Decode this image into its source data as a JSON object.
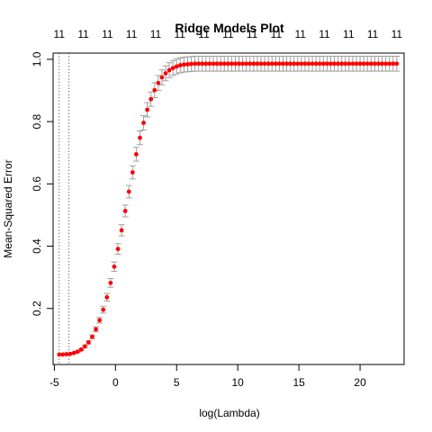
{
  "chart_data": {
    "type": "scatter",
    "title": "Ridge Models Plot",
    "xlabel": "log(Lambda)",
    "ylabel": "Mean-Squared Error",
    "xlim": [
      -5.1,
      23.6
    ],
    "ylim": [
      0.02,
      1.02
    ],
    "x_ticks": [
      -5,
      0,
      5,
      10,
      15,
      20
    ],
    "y_ticks": [
      0.2,
      0.4,
      0.6,
      0.8,
      1.0
    ],
    "x_tick_labels": [
      "-5",
      "0",
      "5",
      "10",
      "15",
      "20"
    ],
    "y_tick_labels": [
      "0.2",
      "0.4",
      "0.6",
      "0.8",
      "1.0"
    ],
    "top_axis_labels": [
      "11",
      "11",
      "11",
      "11",
      "11",
      "11",
      "11",
      "11",
      "11",
      "11",
      "11",
      "11",
      "11",
      "11",
      "11"
    ],
    "vlines": [
      -4.6,
      -3.8
    ],
    "point_color": "#ff0000",
    "errorbar_color": "#a0a0a0",
    "series": [
      {
        "x": [
          -4.6,
          -4.3,
          -4.0,
          -3.7,
          -3.4,
          -3.1,
          -2.8,
          -2.5,
          -2.2,
          -1.9,
          -1.6,
          -1.3,
          -1.0,
          -0.7,
          -0.4,
          -0.1,
          0.2,
          0.5,
          0.8,
          1.1,
          1.4,
          1.7,
          2.0,
          2.3,
          2.6,
          2.9,
          3.2,
          3.5,
          3.8,
          4.1,
          4.4,
          4.7,
          5.0,
          5.3,
          5.6,
          5.9,
          6.2,
          6.5,
          6.8,
          7.1,
          7.4,
          7.7,
          8.0,
          8.3,
          8.6,
          8.9,
          9.2,
          9.5,
          9.8,
          10.1,
          10.4,
          10.7,
          11.0,
          11.3,
          11.6,
          11.9,
          12.2,
          12.5,
          12.8,
          13.1,
          13.4,
          13.7,
          14.0,
          14.3,
          14.6,
          14.9,
          15.2,
          15.5,
          15.8,
          16.1,
          16.4,
          16.7,
          17.0,
          17.3,
          17.6,
          17.9,
          18.2,
          18.5,
          18.8,
          19.1,
          19.4,
          19.7,
          20.0,
          20.3,
          20.6,
          20.9,
          21.2,
          21.5,
          21.8,
          22.1,
          22.4,
          22.7,
          23.0
        ],
        "y": [
          0.052,
          0.052,
          0.053,
          0.054,
          0.057,
          0.061,
          0.068,
          0.078,
          0.091,
          0.109,
          0.133,
          0.162,
          0.196,
          0.236,
          0.282,
          0.334,
          0.391,
          0.451,
          0.513,
          0.575,
          0.637,
          0.695,
          0.748,
          0.796,
          0.838,
          0.872,
          0.901,
          0.924,
          0.942,
          0.955,
          0.965,
          0.972,
          0.977,
          0.981,
          0.983,
          0.984,
          0.985,
          0.986,
          0.986,
          0.986,
          0.986,
          0.986,
          0.986,
          0.986,
          0.986,
          0.986,
          0.986,
          0.986,
          0.986,
          0.986,
          0.986,
          0.986,
          0.986,
          0.986,
          0.986,
          0.986,
          0.986,
          0.986,
          0.986,
          0.986,
          0.986,
          0.986,
          0.986,
          0.986,
          0.986,
          0.986,
          0.986,
          0.986,
          0.986,
          0.986,
          0.986,
          0.986,
          0.986,
          0.986,
          0.986,
          0.986,
          0.986,
          0.986,
          0.986,
          0.986,
          0.986,
          0.986,
          0.986,
          0.986,
          0.986,
          0.986,
          0.986,
          0.986,
          0.986,
          0.986,
          0.986,
          0.986,
          0.986
        ],
        "error": [
          0.0,
          0.0,
          0.001,
          0.001,
          0.002,
          0.002,
          0.003,
          0.004,
          0.005,
          0.006,
          0.008,
          0.009,
          0.011,
          0.012,
          0.014,
          0.015,
          0.017,
          0.018,
          0.019,
          0.02,
          0.021,
          0.022,
          0.022,
          0.023,
          0.023,
          0.023,
          0.024,
          0.024,
          0.024,
          0.024,
          0.024,
          0.024,
          0.024,
          0.024,
          0.024,
          0.024,
          0.024,
          0.024,
          0.024,
          0.024,
          0.024,
          0.024,
          0.024,
          0.024,
          0.024,
          0.024,
          0.024,
          0.024,
          0.024,
          0.024,
          0.024,
          0.024,
          0.024,
          0.024,
          0.024,
          0.024,
          0.024,
          0.024,
          0.024,
          0.024,
          0.024,
          0.024,
          0.024,
          0.024,
          0.024,
          0.024,
          0.024,
          0.024,
          0.024,
          0.024,
          0.024,
          0.024,
          0.024,
          0.024,
          0.024,
          0.024,
          0.024,
          0.024,
          0.024,
          0.024,
          0.024,
          0.024,
          0.024,
          0.024,
          0.024,
          0.024,
          0.024,
          0.024,
          0.024,
          0.024,
          0.024,
          0.024,
          0.024
        ]
      }
    ]
  }
}
